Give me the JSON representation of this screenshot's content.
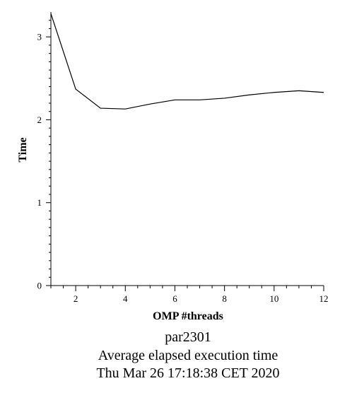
{
  "chart_data": {
    "type": "line",
    "xlabel": "OMP #threads",
    "ylabel": "Time",
    "xlim": [
      1,
      12
    ],
    "ylim": [
      0,
      3.3
    ],
    "x_ticks": [
      2,
      4,
      6,
      8,
      10,
      12
    ],
    "y_ticks": [
      0,
      1,
      2,
      3
    ],
    "grid": false,
    "series": [
      {
        "x": [
          1,
          2,
          3,
          4,
          5,
          6,
          7,
          8,
          9,
          10,
          11,
          12
        ],
        "values": [
          3.28,
          2.37,
          2.14,
          2.13,
          2.19,
          2.24,
          2.24,
          2.26,
          2.3,
          2.33,
          2.35,
          2.33
        ]
      }
    ],
    "caption": [
      "par2301",
      "Average elapsed execution time",
      "Thu Mar 26 17:18:38 CET 2020"
    ]
  }
}
